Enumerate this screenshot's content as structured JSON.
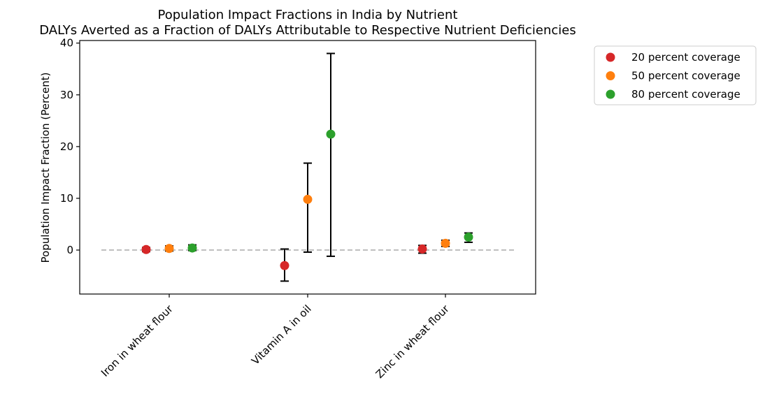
{
  "chart_data": {
    "type": "scatter",
    "title": "Population Impact Fractions in India by Nutrient",
    "subtitle": "DALYs Averted as a Fraction of DALYs Attributable to Respective Nutrient Deficiencies",
    "xlabel": "",
    "ylabel": "Population Impact Fraction (Percent)",
    "categories": [
      "Iron in wheat flour",
      "Vitamin A in oil",
      "Zinc in wheat flour"
    ],
    "ylim": [
      -8.5,
      40.5
    ],
    "yticks": [
      0,
      10,
      20,
      30,
      40
    ],
    "reference_line": 0,
    "legend_position": "outside-right",
    "series": [
      {
        "name": "20 percent coverage",
        "color": "#d62728",
        "values": [
          0.1,
          -3.0,
          0.2
        ],
        "lower": [
          -0.3,
          -6.0,
          -0.6
        ],
        "upper": [
          0.5,
          0.2,
          0.9
        ]
      },
      {
        "name": "50 percent coverage",
        "color": "#ff7f0e",
        "values": [
          0.3,
          9.8,
          1.3
        ],
        "lower": [
          -0.2,
          -0.4,
          0.7
        ],
        "upper": [
          0.8,
          16.8,
          1.9
        ]
      },
      {
        "name": "80 percent coverage",
        "color": "#2ca02c",
        "values": [
          0.4,
          22.4,
          2.5
        ],
        "lower": [
          -0.1,
          -1.2,
          1.5
        ],
        "upper": [
          1.0,
          38.0,
          3.3
        ]
      }
    ]
  }
}
